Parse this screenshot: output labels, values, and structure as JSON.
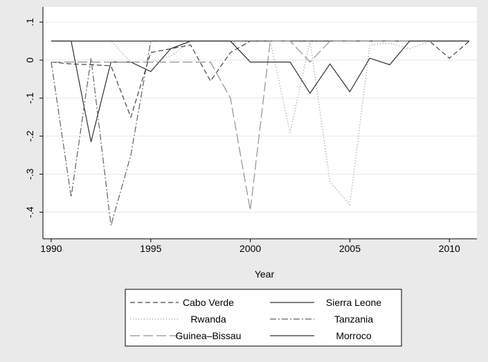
{
  "chart_data": {
    "type": "line",
    "title": "",
    "xlabel": "Year",
    "ylabel": "",
    "xlim": [
      1990,
      2011
    ],
    "ylim": [
      -0.45,
      0.12
    ],
    "x_ticks": [
      1990,
      1995,
      2000,
      2005,
      2010
    ],
    "x_tick_labels": [
      "1990",
      "1995",
      "2000",
      "2005",
      "2010"
    ],
    "y_ticks": [
      0.1,
      0,
      -0.1,
      -0.2,
      -0.3,
      -0.4
    ],
    "y_tick_labels": [
      ".1",
      "0",
      "-.1",
      "-.2",
      "-.3",
      "-.4"
    ],
    "grid": "horizontal",
    "legend_position": "bottom",
    "legend_columns": 2,
    "plot_background": "#ffffff",
    "page_background": "#eaeaea",
    "x": [
      1990,
      1991,
      1992,
      1993,
      1994,
      1995,
      1996,
      1997,
      1998,
      1999,
      2000,
      2001,
      2002,
      2003,
      2004,
      2005,
      2006,
      2007,
      2008,
      2009,
      2010,
      2011
    ],
    "series": [
      {
        "name": "Cabo Verde",
        "style": "dash",
        "color": "#404040",
        "values": [
          -0.005,
          -0.01,
          -0.012,
          -0.015,
          -0.15,
          0.02,
          0.03,
          0.04,
          -0.055,
          0.02,
          0.05,
          0.05,
          0.05,
          0.05,
          0.05,
          0.05,
          0.05,
          0.05,
          0.05,
          0.05,
          0.005,
          0.05
        ]
      },
      {
        "name": "Sierra Leone",
        "style": "solid",
        "color": "#303030",
        "values": [
          0.05,
          0.05,
          -0.215,
          -0.005,
          -0.005,
          -0.03,
          0.03,
          0.05,
          0.05,
          0.05,
          0.05,
          0.05,
          0.05,
          0.05,
          0.05,
          0.05,
          0.05,
          0.05,
          0.05,
          0.05,
          0.05,
          0.05
        ]
      },
      {
        "name": "Rwanda",
        "style": "dot",
        "color": "#909090",
        "values": [
          0.05,
          0.05,
          0.05,
          0.05,
          -0.005,
          -0.005,
          0.01,
          0.05,
          0.05,
          0.05,
          0.05,
          0.05,
          -0.19,
          0.05,
          -0.32,
          -0.38,
          0.04,
          0.045,
          0.03,
          0.05,
          0.05,
          0.05
        ]
      },
      {
        "name": "Tanzania",
        "style": "dashdot",
        "color": "#606060",
        "values": [
          -0.005,
          -0.36,
          0.005,
          -0.435,
          -0.25,
          0.05,
          0.05,
          0.05,
          0.05,
          0.05,
          0.05,
          0.05,
          0.05,
          0.05,
          0.05,
          0.05,
          0.05,
          0.05,
          0.05,
          0.05,
          0.05,
          0.05
        ]
      },
      {
        "name": "Guinea–Bissau",
        "style": "longdash",
        "color": "#909090",
        "values": [
          -0.005,
          -0.005,
          -0.005,
          -0.005,
          -0.005,
          -0.005,
          -0.005,
          -0.005,
          -0.005,
          -0.1,
          -0.395,
          0.05,
          0.05,
          -0.005,
          0.05,
          0.05,
          0.05,
          0.05,
          0.05,
          0.05,
          0.05,
          0.05
        ]
      },
      {
        "name": "Morroco",
        "style": "solid",
        "color": "#303030",
        "values": [
          0.05,
          0.05,
          0.05,
          0.05,
          0.05,
          0.05,
          0.05,
          0.05,
          0.05,
          0.05,
          -0.005,
          -0.005,
          -0.005,
          -0.087,
          -0.01,
          -0.083,
          0.005,
          -0.012,
          0.05,
          0.05,
          0.05,
          0.05
        ]
      }
    ]
  }
}
